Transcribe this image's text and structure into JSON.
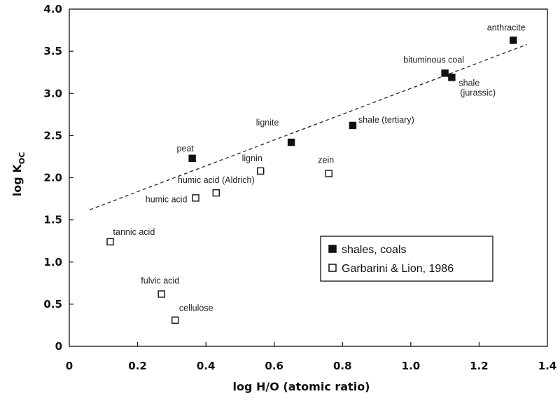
{
  "chart_data": {
    "type": "scatter",
    "xlabel": "log H/O (atomic ratio)",
    "ylabel": "log K",
    "ylabel_sub": "OC",
    "xlim": [
      0,
      1.4
    ],
    "ylim": [
      0,
      4.0
    ],
    "x_ticks": [
      "0",
      "0.2",
      "0.4",
      "0.6",
      "0.8",
      "1.0",
      "1.2",
      "1.4"
    ],
    "y_ticks": [
      "0",
      "0.5",
      "1.0",
      "1.5",
      "2.0",
      "2.5",
      "3.0",
      "3.5",
      "4.0"
    ],
    "grid": false,
    "legend_position": "lower-right",
    "series": [
      {
        "name": "shales, coals",
        "marker": "filled-square",
        "points": [
          {
            "label": "peat",
            "x": 0.36,
            "y": 2.23
          },
          {
            "label": "lignite",
            "x": 0.65,
            "y": 2.42
          },
          {
            "label": "shale (tertiary)",
            "x": 0.83,
            "y": 2.62
          },
          {
            "label": "bituminous coal",
            "x": 1.1,
            "y": 3.24
          },
          {
            "label": "shale\n(jurassic)",
            "x": 1.12,
            "y": 3.19
          },
          {
            "label": "anthracite",
            "x": 1.3,
            "y": 3.63
          }
        ]
      },
      {
        "name": "Garbarini & Lion, 1986",
        "marker": "open-square",
        "points": [
          {
            "label": "tannic acid",
            "x": 0.12,
            "y": 1.24
          },
          {
            "label": "fulvic acid",
            "x": 0.27,
            "y": 0.62
          },
          {
            "label": "cellulose",
            "x": 0.31,
            "y": 0.31
          },
          {
            "label": "humic acid",
            "x": 0.37,
            "y": 1.76
          },
          {
            "label": "humic acid (Aldrich)",
            "x": 0.43,
            "y": 1.82
          },
          {
            "label": "lignin",
            "x": 0.56,
            "y": 2.08
          },
          {
            "label": "zein",
            "x": 0.76,
            "y": 2.05
          }
        ]
      }
    ],
    "trendline": {
      "style": "dashed",
      "x": [
        0.06,
        1.34
      ],
      "y": [
        1.62,
        3.58
      ]
    }
  }
}
